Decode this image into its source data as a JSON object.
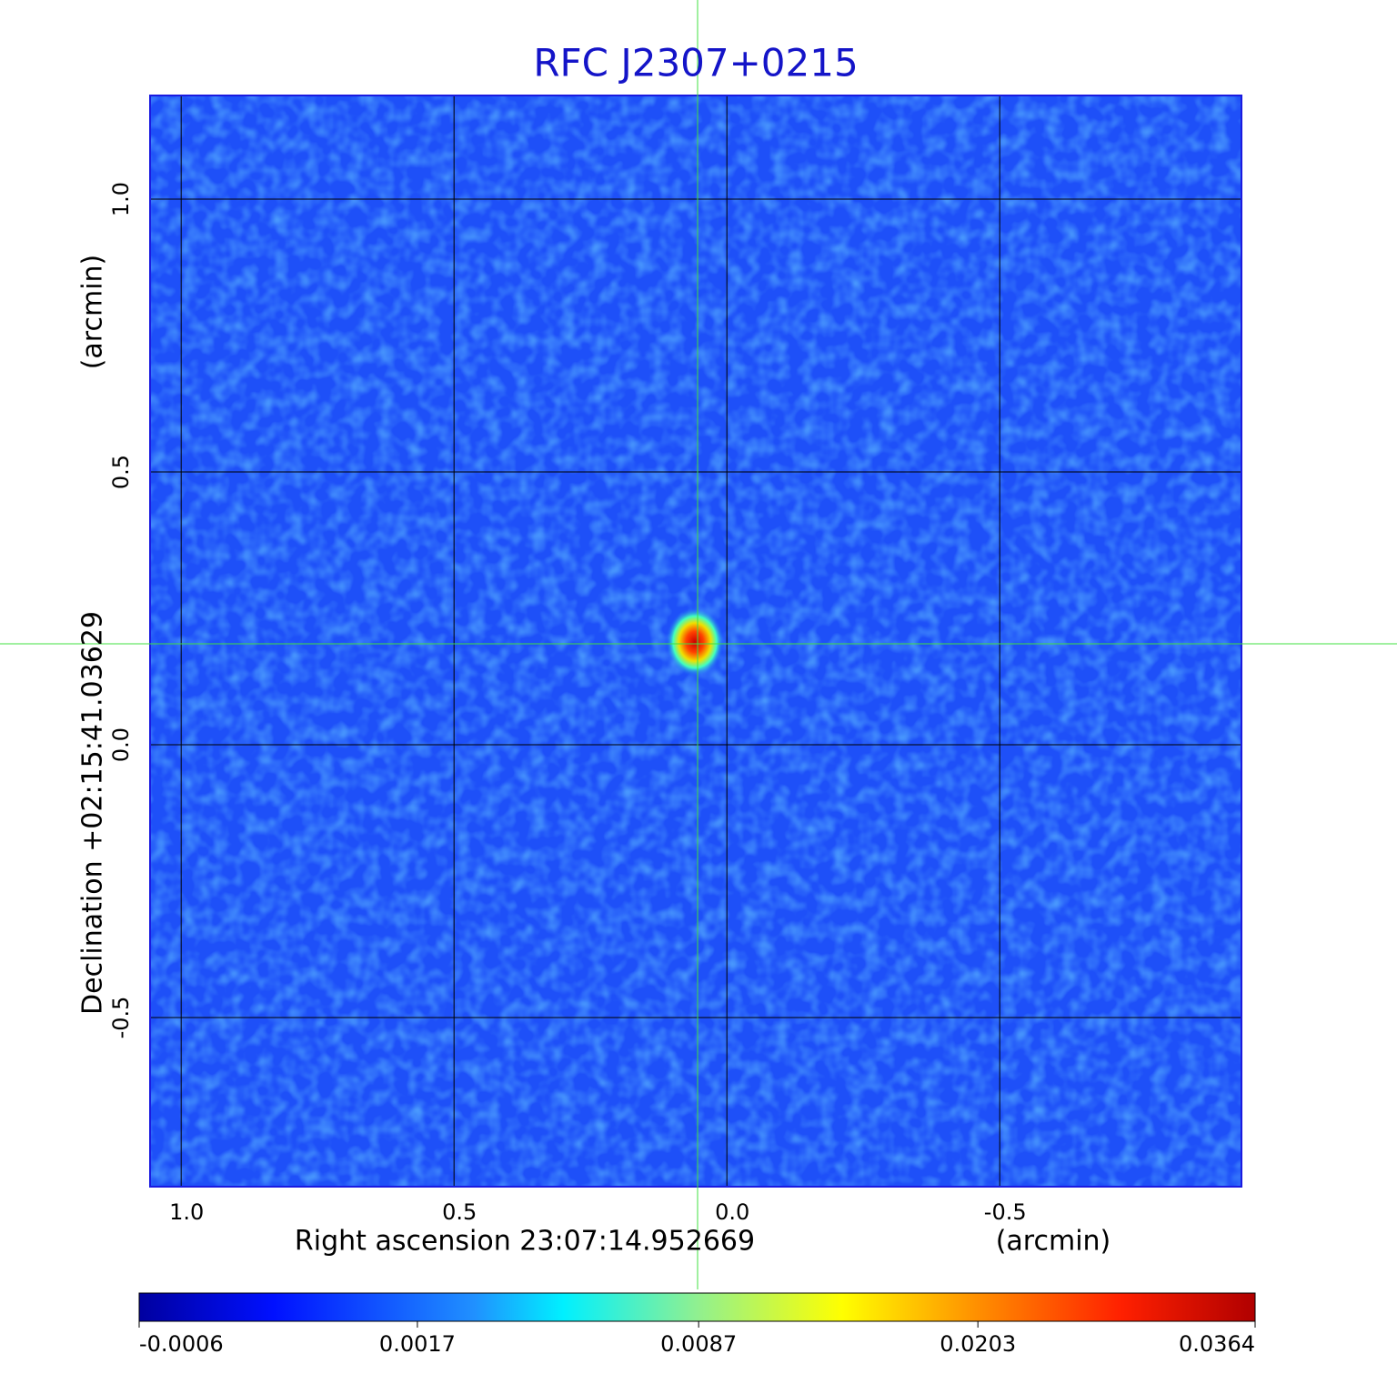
{
  "chart_data": {
    "type": "image",
    "title": "RFC J2307+0215",
    "x_label": "Right ascension  23:07:14.952669",
    "x_unit": "(arcmin)",
    "y_label": "Declination  +02:15:41.03629",
    "y_unit": "(arcmin)",
    "xlim": [
      1.057,
      -0.943
    ],
    "ylim": [
      -0.81,
      1.19
    ],
    "xticks": [
      {
        "value": 1,
        "label": "1.0"
      },
      0.5,
      {
        "value": 0,
        "label": "0.0"
      },
      -0.5
    ],
    "yticks": [
      {
        "value": 1,
        "label": "1.0"
      },
      0.5,
      {
        "value": 0,
        "label": "0.0"
      },
      -0.5
    ],
    "grid": true,
    "colormap": "jet",
    "color_scale": "sqrt",
    "clim": [
      -0.0006,
      0.0364
    ],
    "cticks": [
      -0.0006,
      0.0017,
      0.0087,
      0.0203,
      0.0364
    ]
  }
}
